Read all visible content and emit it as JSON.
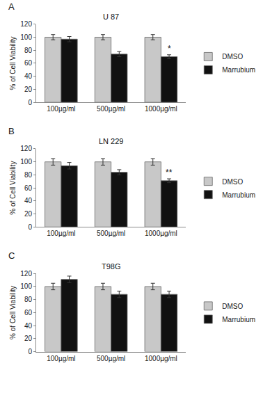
{
  "chart_data": [
    {
      "type": "bar",
      "title": "U 87",
      "annotations": [
        {
          "text": "A"
        },
        {
          "text": "*",
          "category": "1000µg/ml",
          "series": "Marrubium"
        }
      ],
      "categories": [
        "100µg/ml",
        "500µg/ml",
        "1000µg/ml"
      ],
      "y_label": "% of Cell Viability",
      "series": [
        {
          "name": "DMSO",
          "color": "#c8c8c8",
          "values": [
            100,
            100,
            100
          ],
          "errors": [
            4,
            4,
            4
          ]
        },
        {
          "name": "Marrubium",
          "color": "#111111",
          "values": [
            97,
            74,
            70
          ],
          "errors": [
            4,
            4,
            3
          ]
        }
      ],
      "ylim": [
        0,
        120
      ],
      "yticks": [
        0,
        20,
        40,
        60,
        80,
        100,
        120
      ],
      "grid": false,
      "legend": "right"
    },
    {
      "type": "bar",
      "title": "LN 229",
      "annotations": [
        {
          "text": "B"
        },
        {
          "text": "**",
          "category": "1000µg/ml",
          "series": "Marrubium"
        }
      ],
      "categories": [
        "100µg/ml",
        "500µg/ml",
        "1000µg/ml"
      ],
      "y_label": "% of Cell Viability",
      "series": [
        {
          "name": "DMSO",
          "color": "#c8c8c8",
          "values": [
            100,
            100,
            100
          ],
          "errors": [
            5,
            5,
            5
          ]
        },
        {
          "name": "Marrubium",
          "color": "#111111",
          "values": [
            94,
            84,
            71
          ],
          "errors": [
            5,
            4,
            3
          ]
        }
      ],
      "ylim": [
        0,
        120
      ],
      "yticks": [
        0,
        20,
        40,
        60,
        80,
        100,
        120
      ],
      "grid": false,
      "legend": "right"
    },
    {
      "type": "bar",
      "title": "T98G",
      "annotations": [
        {
          "text": "C"
        }
      ],
      "categories": [
        "100µg/ml",
        "500µg/ml",
        "1000µg/ml"
      ],
      "y_label": "% of Cell Viability",
      "series": [
        {
          "name": "DMSO",
          "color": "#c8c8c8",
          "values": [
            100,
            100,
            100
          ],
          "errors": [
            5,
            5,
            5
          ]
        },
        {
          "name": "Marrubium",
          "color": "#111111",
          "values": [
            111,
            88,
            88
          ],
          "errors": [
            5,
            5,
            5
          ]
        }
      ],
      "ylim": [
        0,
        120
      ],
      "yticks": [
        0,
        20,
        40,
        60,
        80,
        100,
        120
      ],
      "grid": false,
      "legend": "right"
    }
  ]
}
